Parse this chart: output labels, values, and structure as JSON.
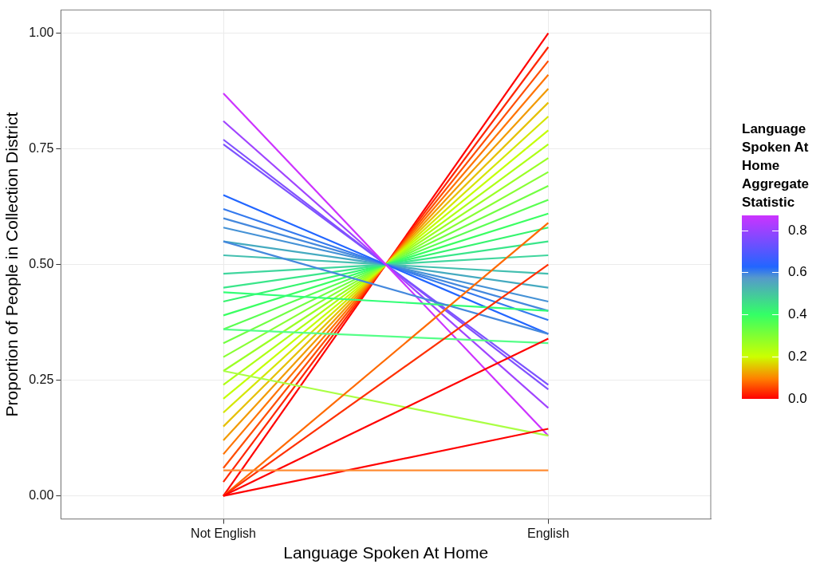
{
  "chart_data": {
    "type": "line",
    "xlabel": "Language Spoken At Home",
    "ylabel": "Proportion of People in Collection District",
    "clabel": "Language Spoken At Home Aggregate Statistic",
    "categories": [
      "Not English",
      "English"
    ],
    "ylim": [
      -0.05,
      1.05
    ],
    "yticks": [
      {
        "value": 0,
        "label": "0.00"
      },
      {
        "value": 0.25,
        "label": "0.25"
      },
      {
        "value": 0.5,
        "label": "0.50"
      },
      {
        "value": 0.75,
        "label": "0.75"
      },
      {
        "value": 1,
        "label": "1.00"
      }
    ],
    "clim": [
      0,
      0.87
    ],
    "cticks": [
      {
        "value": 0,
        "label": "0.0"
      },
      {
        "value": 0.2,
        "label": "0.2"
      },
      {
        "value": 0.4,
        "label": "0.4"
      },
      {
        "value": 0.6,
        "label": "0.6"
      },
      {
        "value": 0.8,
        "label": "0.8"
      }
    ],
    "grid": true,
    "legend": false,
    "marker": "none",
    "series": [
      {
        "color": "#ff8c33",
        "values": [
          0.055,
          0.055
        ]
      },
      {
        "color": "#ff0000",
        "values": [
          0,
          0.34
        ]
      },
      {
        "color": "#ff0000",
        "values": [
          0,
          0.145
        ]
      },
      {
        "color": "#ff3000",
        "values": [
          0,
          0.5
        ]
      },
      {
        "color": "#ff6a00",
        "values": [
          0,
          0.59
        ]
      },
      {
        "color": "#aaff44",
        "values": [
          0.27,
          0.13
        ]
      },
      {
        "color": "#55ff88",
        "values": [
          0.36,
          0.33
        ]
      },
      {
        "color": "#4488dd",
        "values": [
          0.55,
          0.35
        ]
      },
      {
        "color": "#33ff77",
        "values": [
          0.44,
          0.4
        ]
      },
      {
        "color": "#cc33ff",
        "values": [
          0.87,
          0.13
        ]
      },
      {
        "color": "#a044ff",
        "values": [
          0.81,
          0.19
        ]
      },
      {
        "color": "#8150ff",
        "values": [
          0.77,
          0.23
        ]
      },
      {
        "color": "#7d52ff",
        "values": [
          0.76,
          0.24
        ]
      },
      {
        "color": "#2266ff",
        "values": [
          0.65,
          0.35
        ]
      },
      {
        "color": "#357aee",
        "values": [
          0.62,
          0.38
        ]
      },
      {
        "color": "#4488dd",
        "values": [
          0.6,
          0.4
        ]
      },
      {
        "color": "#4592d6",
        "values": [
          0.58,
          0.42
        ]
      },
      {
        "color": "#45aac0",
        "values": [
          0.55,
          0.45
        ]
      },
      {
        "color": "#44bfb0",
        "values": [
          0.52,
          0.48
        ]
      },
      {
        "color": "#40d69e",
        "values": [
          0.48,
          0.52
        ]
      },
      {
        "color": "#3ae68a",
        "values": [
          0.45,
          0.55
        ]
      },
      {
        "color": "#35f46e",
        "values": [
          0.42,
          0.58
        ]
      },
      {
        "color": "#3aff62",
        "values": [
          0.39,
          0.61
        ]
      },
      {
        "color": "#5aff51",
        "values": [
          0.36,
          0.64
        ]
      },
      {
        "color": "#71ff42",
        "values": [
          0.33,
          0.67
        ]
      },
      {
        "color": "#88ff33",
        "values": [
          0.3,
          0.7
        ]
      },
      {
        "color": "#9aff24",
        "values": [
          0.27,
          0.73
        ]
      },
      {
        "color": "#aeff14",
        "values": [
          0.24,
          0.76
        ]
      },
      {
        "color": "#c4ff05",
        "values": [
          0.21,
          0.79
        ]
      },
      {
        "color": "#d4e600",
        "values": [
          0.18,
          0.82
        ]
      },
      {
        "color": "#e6c000",
        "values": [
          0.15,
          0.85
        ]
      },
      {
        "color": "#f29a00",
        "values": [
          0.12,
          0.88
        ]
      },
      {
        "color": "#ff7300",
        "values": [
          0.09,
          0.91
        ]
      },
      {
        "color": "#ff4d00",
        "values": [
          0.06,
          0.94
        ]
      },
      {
        "color": "#ff2600",
        "values": [
          0.03,
          0.97
        ]
      },
      {
        "color": "#ff0000",
        "values": [
          0,
          1
        ]
      }
    ]
  }
}
